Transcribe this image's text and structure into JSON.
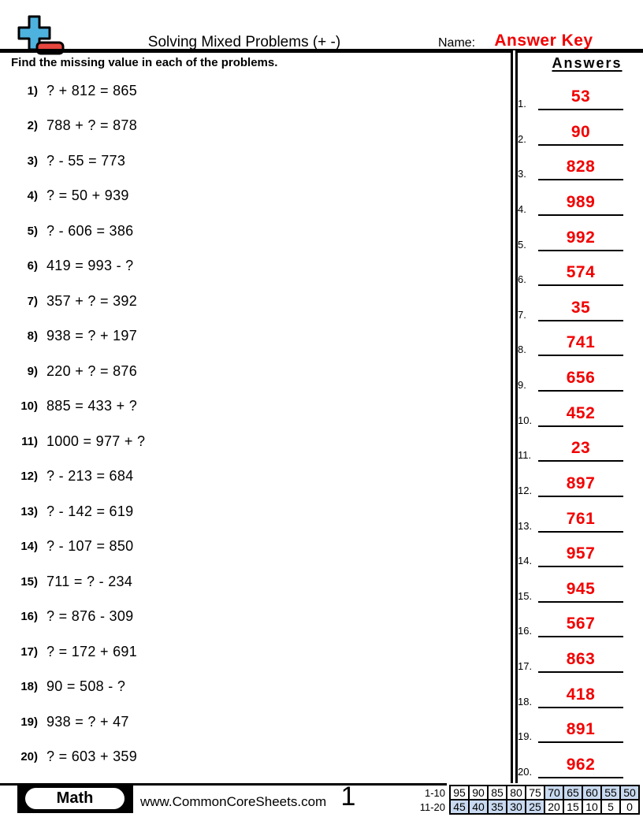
{
  "colors": {
    "accent_red": "#f20000",
    "logo_blue": "#4eb2df",
    "logo_red": "#e6473e",
    "highlight_blue": "#c9daf0"
  },
  "header": {
    "title": "Solving Mixed Problems (+ -)",
    "name_label": "Name:",
    "name_value": "Answer Key",
    "instruction": "Find the missing value in each of the problems."
  },
  "answers_panel": {
    "heading": "Answers",
    "items": [
      {
        "num": "1.",
        "value": "53"
      },
      {
        "num": "2.",
        "value": "90"
      },
      {
        "num": "3.",
        "value": "828"
      },
      {
        "num": "4.",
        "value": "989"
      },
      {
        "num": "5.",
        "value": "992"
      },
      {
        "num": "6.",
        "value": "574"
      },
      {
        "num": "7.",
        "value": "35"
      },
      {
        "num": "8.",
        "value": "741"
      },
      {
        "num": "9.",
        "value": "656"
      },
      {
        "num": "10.",
        "value": "452"
      },
      {
        "num": "11.",
        "value": "23"
      },
      {
        "num": "12.",
        "value": "897"
      },
      {
        "num": "13.",
        "value": "761"
      },
      {
        "num": "14.",
        "value": "957"
      },
      {
        "num": "15.",
        "value": "945"
      },
      {
        "num": "16.",
        "value": "567"
      },
      {
        "num": "17.",
        "value": "863"
      },
      {
        "num": "18.",
        "value": "418"
      },
      {
        "num": "19.",
        "value": "891"
      },
      {
        "num": "20.",
        "value": "962"
      }
    ]
  },
  "problems": {
    "items": [
      {
        "num": "1)",
        "equation": "? + 812 = 865"
      },
      {
        "num": "2)",
        "equation": "788 + ? = 878"
      },
      {
        "num": "3)",
        "equation": "? - 55 = 773"
      },
      {
        "num": "4)",
        "equation": "? = 50 + 939"
      },
      {
        "num": "5)",
        "equation": "? - 606 = 386"
      },
      {
        "num": "6)",
        "equation": "419 = 993 - ?"
      },
      {
        "num": "7)",
        "equation": "357 + ? = 392"
      },
      {
        "num": "8)",
        "equation": "938 = ? + 197"
      },
      {
        "num": "9)",
        "equation": "220 + ? = 876"
      },
      {
        "num": "10)",
        "equation": "885 = 433 + ?"
      },
      {
        "num": "11)",
        "equation": "1000 = 977 + ?"
      },
      {
        "num": "12)",
        "equation": "? - 213 = 684"
      },
      {
        "num": "13)",
        "equation": "? - 142 = 619"
      },
      {
        "num": "14)",
        "equation": "? - 107 = 850"
      },
      {
        "num": "15)",
        "equation": "711 = ? - 234"
      },
      {
        "num": "16)",
        "equation": "? = 876 - 309"
      },
      {
        "num": "17)",
        "equation": "? = 172 + 691"
      },
      {
        "num": "18)",
        "equation": "90 = 508 - ?"
      },
      {
        "num": "19)",
        "equation": "938 = ? + 47"
      },
      {
        "num": "20)",
        "equation": "? = 603 + 359"
      }
    ]
  },
  "footer": {
    "subject_badge": "Math",
    "website": "www.CommonCoreSheets.com",
    "page_number": "1",
    "grade_table": {
      "rows": [
        {
          "label": "1-10",
          "cells": [
            {
              "v": "95",
              "hl": false
            },
            {
              "v": "90",
              "hl": false
            },
            {
              "v": "85",
              "hl": false
            },
            {
              "v": "80",
              "hl": false
            },
            {
              "v": "75",
              "hl": false
            },
            {
              "v": "70",
              "hl": true
            },
            {
              "v": "65",
              "hl": true
            },
            {
              "v": "60",
              "hl": true
            },
            {
              "v": "55",
              "hl": true
            },
            {
              "v": "50",
              "hl": true
            }
          ]
        },
        {
          "label": "11-20",
          "cells": [
            {
              "v": "45",
              "hl": true
            },
            {
              "v": "40",
              "hl": true
            },
            {
              "v": "35",
              "hl": true
            },
            {
              "v": "30",
              "hl": true
            },
            {
              "v": "25",
              "hl": true
            },
            {
              "v": "20",
              "hl": false
            },
            {
              "v": "15",
              "hl": false
            },
            {
              "v": "10",
              "hl": false
            },
            {
              "v": "5",
              "hl": false
            },
            {
              "v": "0",
              "hl": false
            }
          ]
        }
      ]
    }
  }
}
